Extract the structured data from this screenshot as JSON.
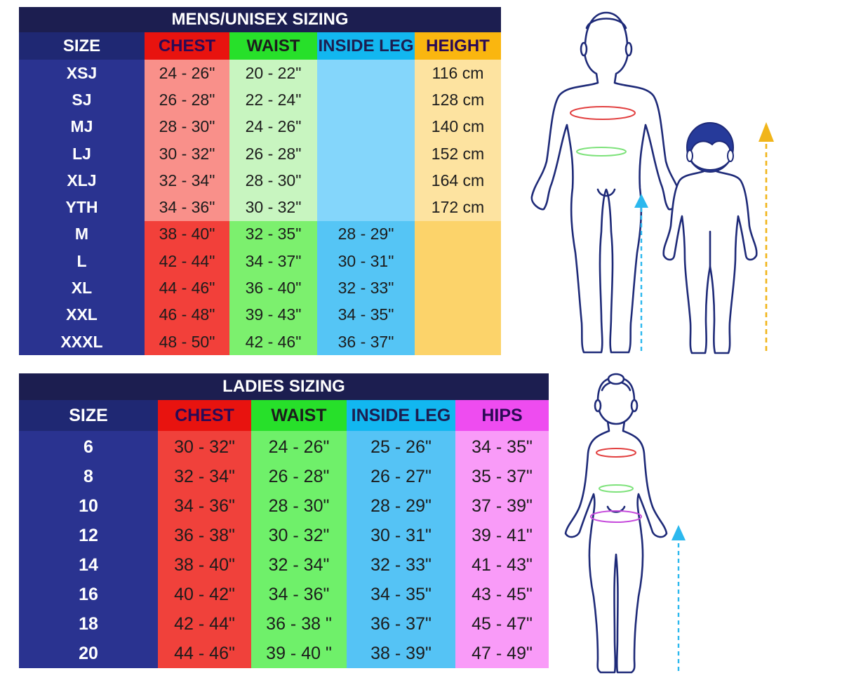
{
  "mens": {
    "title": "MENS/UNISEX SIZING",
    "headers": {
      "size": "SIZE",
      "chest": "CHEST",
      "waist": "WAIST",
      "inside_leg": "INSIDE LEG",
      "height": "HEIGHT"
    },
    "rows": [
      {
        "size": "XSJ",
        "chest": "24 - 26\"",
        "waist": "20 - 22\"",
        "inside_leg": "",
        "height": "116 cm"
      },
      {
        "size": "SJ",
        "chest": "26 - 28\"",
        "waist": "22 - 24\"",
        "inside_leg": "",
        "height": "128 cm"
      },
      {
        "size": "MJ",
        "chest": "28 - 30\"",
        "waist": "24 - 26\"",
        "inside_leg": "",
        "height": "140 cm"
      },
      {
        "size": "LJ",
        "chest": "30 - 32\"",
        "waist": "26 - 28\"",
        "inside_leg": "",
        "height": "152 cm"
      },
      {
        "size": "XLJ",
        "chest": "32 - 34\"",
        "waist": "28 - 30\"",
        "inside_leg": "",
        "height": "164 cm"
      },
      {
        "size": "YTH",
        "chest": "34 - 36\"",
        "waist": "30 - 32\"",
        "inside_leg": "",
        "height": "172 cm"
      },
      {
        "size": "M",
        "chest": "38 - 40\"",
        "waist": "32 - 35\"",
        "inside_leg": "28 - 29\"",
        "height": ""
      },
      {
        "size": "L",
        "chest": "42 - 44\"",
        "waist": "34 - 37\"",
        "inside_leg": "30 - 31\"",
        "height": ""
      },
      {
        "size": "XL",
        "chest": "44 - 46\"",
        "waist": "36 - 40\"",
        "inside_leg": "32 - 33\"",
        "height": ""
      },
      {
        "size": "XXL",
        "chest": "46 - 48\"",
        "waist": "39 - 43\"",
        "inside_leg": "34 - 35\"",
        "height": ""
      },
      {
        "size": "XXXL",
        "chest": "48 - 50\"",
        "waist": "42 - 46\"",
        "inside_leg": "36 - 37\"",
        "height": ""
      }
    ]
  },
  "ladies": {
    "title": "LADIES SIZING",
    "headers": {
      "size": "SIZE",
      "chest": "CHEST",
      "waist": "WAIST",
      "inside_leg": "INSIDE LEG",
      "hips": "HIPS"
    },
    "rows": [
      {
        "size": "6",
        "chest": "30 - 32\"",
        "waist": "24 - 26\"",
        "inside_leg": "25 - 26\"",
        "hips": "34 - 35\""
      },
      {
        "size": "8",
        "chest": "32 - 34\"",
        "waist": "26 - 28\"",
        "inside_leg": "26 - 27\"",
        "hips": "35 - 37\""
      },
      {
        "size": "10",
        "chest": "34 - 36\"",
        "waist": "28 - 30\"",
        "inside_leg": "28 - 29\"",
        "hips": "37 - 39\""
      },
      {
        "size": "12",
        "chest": "36 - 38\"",
        "waist": "30 - 32\"",
        "inside_leg": "30 - 31\"",
        "hips": "39 - 41\""
      },
      {
        "size": "14",
        "chest": "38 - 40\"",
        "waist": "32 - 34\"",
        "inside_leg": "32 - 33\"",
        "hips": "41 - 43\""
      },
      {
        "size": "16",
        "chest": "40 - 42\"",
        "waist": "34 - 36\"",
        "inside_leg": "34 - 35\"",
        "hips": "43 - 45\""
      },
      {
        "size": "18",
        "chest": "42 - 44\"",
        "waist": "36 - 38 \"",
        "inside_leg": "36 - 37\"",
        "hips": "45 - 47\""
      },
      {
        "size": "20",
        "chest": "44 - 46\"",
        "waist": "39 - 40 \"",
        "inside_leg": "38 - 39\"",
        "hips": "47 - 49\""
      }
    ]
  },
  "colors": {
    "title_bg": "#1c1e50",
    "size_col": "#2a3390",
    "size_head": "#1f2873",
    "chest_head": "#e8130f",
    "chest_light": "#f9908a",
    "chest_dark": "#f2403a",
    "waist_head": "#27e02a",
    "waist_light": "#c8f5c0",
    "waist_dark": "#7cf06e",
    "leg_head": "#12b7f0",
    "leg_col": "#84d6fb",
    "leg_dark": "#55c5f5",
    "height_head": "#fab60f",
    "height_light": "#fde3a0",
    "height_dark": "#fcd36a",
    "hips_head": "#ee4cf0",
    "hips_col": "#f99bf8",
    "ladies_chest": "#f0413b",
    "ladies_waist": "#6ff06a",
    "ladies_leg": "#55c3f5",
    "figure_stroke": "#1e2a78",
    "chest_ring": "#e24040",
    "waist_ring": "#7de27a",
    "hip_ring": "#c64bdc",
    "arrow_blue": "#2bb8ee",
    "arrow_gold": "#f1b51a"
  },
  "figures": {
    "man": "man-outline-icon",
    "child": "child-outline-icon",
    "woman": "woman-outline-icon",
    "inside_leg_arrow": "arrow-up-icon",
    "height_arrow": "arrow-up-icon"
  }
}
